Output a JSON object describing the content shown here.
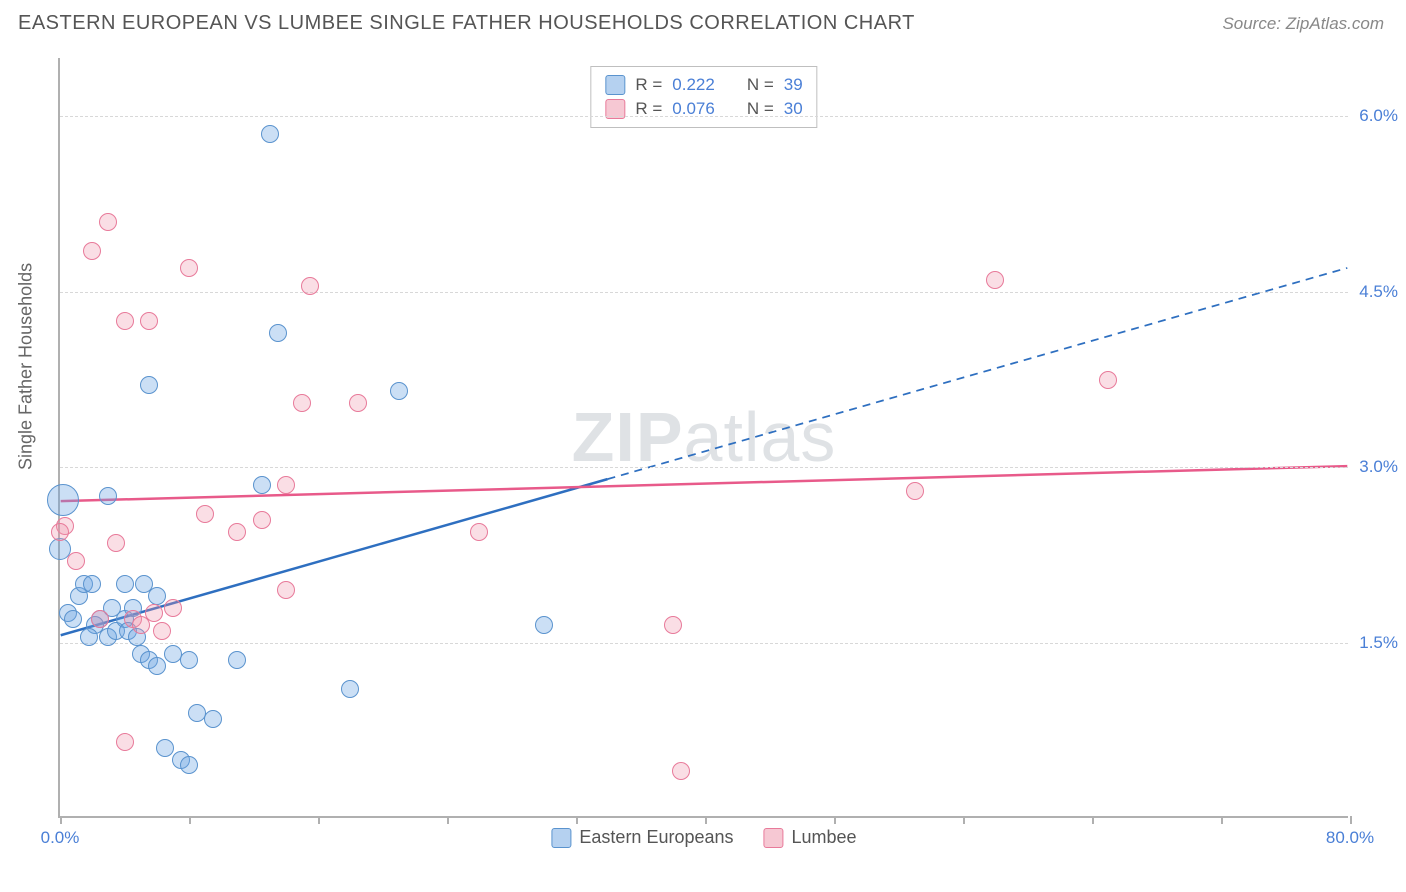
{
  "title": "EASTERN EUROPEAN VS LUMBEE SINGLE FATHER HOUSEHOLDS CORRELATION CHART",
  "source": "Source: ZipAtlas.com",
  "ylabel": "Single Father Households",
  "watermark_a": "ZIP",
  "watermark_b": "atlas",
  "chart": {
    "type": "scatter",
    "x_min": 0.0,
    "x_max": 80.0,
    "y_min": 0.0,
    "y_max": 6.5,
    "x_tick_label_min": "0.0%",
    "x_tick_label_max": "80.0%",
    "x_ticks": [
      0,
      8,
      16,
      24,
      32,
      40,
      48,
      56,
      64,
      72,
      80
    ],
    "y_gridlines": [
      {
        "v": 1.5,
        "label": "1.5%"
      },
      {
        "v": 3.0,
        "label": "3.0%"
      },
      {
        "v": 4.5,
        "label": "4.5%"
      },
      {
        "v": 6.0,
        "label": "6.0%"
      }
    ],
    "background_color": "#ffffff",
    "grid_color": "#d8d8d8",
    "axis_color": "#b0b0b0",
    "tick_label_color": "#4a7fd6",
    "series": [
      {
        "name": "Eastern Europeans",
        "color_fill": "rgba(107,163,226,0.35)",
        "color_stroke": "#5a93ce",
        "r_stat": "0.222",
        "n_stat": "39",
        "trend": {
          "x1": 0,
          "y1": 1.55,
          "x2": 80,
          "y2": 4.7,
          "solid_until_x": 34,
          "color": "#2e6fc0",
          "width": 2.5
        },
        "points": [
          {
            "x": 0.2,
            "y": 2.72,
            "r": 16
          },
          {
            "x": 0.0,
            "y": 2.3,
            "r": 11
          },
          {
            "x": 0.5,
            "y": 1.75,
            "r": 9
          },
          {
            "x": 0.8,
            "y": 1.7,
            "r": 9
          },
          {
            "x": 1.2,
            "y": 1.9,
            "r": 9
          },
          {
            "x": 1.5,
            "y": 2.0,
            "r": 9
          },
          {
            "x": 2.0,
            "y": 2.0,
            "r": 9
          },
          {
            "x": 2.5,
            "y": 1.7,
            "r": 9
          },
          {
            "x": 3.0,
            "y": 1.55,
            "r": 9
          },
          {
            "x": 3.5,
            "y": 1.6,
            "r": 9
          },
          {
            "x": 4.0,
            "y": 1.7,
            "r": 9
          },
          {
            "x": 4.5,
            "y": 1.8,
            "r": 9
          },
          {
            "x": 5.0,
            "y": 1.4,
            "r": 9
          },
          {
            "x": 5.5,
            "y": 1.35,
            "r": 9
          },
          {
            "x": 6.0,
            "y": 1.3,
            "r": 9
          },
          {
            "x": 7.0,
            "y": 1.4,
            "r": 9
          },
          {
            "x": 8.0,
            "y": 1.35,
            "r": 9
          },
          {
            "x": 8.5,
            "y": 0.9,
            "r": 9
          },
          {
            "x": 9.5,
            "y": 0.85,
            "r": 9
          },
          {
            "x": 6.5,
            "y": 0.6,
            "r": 9
          },
          {
            "x": 7.5,
            "y": 0.5,
            "r": 9
          },
          {
            "x": 8.0,
            "y": 0.45,
            "r": 9
          },
          {
            "x": 11.0,
            "y": 1.35,
            "r": 9
          },
          {
            "x": 12.5,
            "y": 2.85,
            "r": 9
          },
          {
            "x": 3.0,
            "y": 2.75,
            "r": 9
          },
          {
            "x": 4.0,
            "y": 2.0,
            "r": 9
          },
          {
            "x": 13.5,
            "y": 4.15,
            "r": 9
          },
          {
            "x": 5.5,
            "y": 3.7,
            "r": 9
          },
          {
            "x": 13.0,
            "y": 5.85,
            "r": 9
          },
          {
            "x": 21.0,
            "y": 3.65,
            "r": 9
          },
          {
            "x": 18.0,
            "y": 1.1,
            "r": 9
          },
          {
            "x": 30.0,
            "y": 1.65,
            "r": 9
          },
          {
            "x": 2.2,
            "y": 1.65,
            "r": 9
          },
          {
            "x": 1.8,
            "y": 1.55,
            "r": 9
          },
          {
            "x": 3.2,
            "y": 1.8,
            "r": 9
          },
          {
            "x": 4.2,
            "y": 1.6,
            "r": 9
          },
          {
            "x": 4.8,
            "y": 1.55,
            "r": 9
          },
          {
            "x": 5.2,
            "y": 2.0,
            "r": 9
          },
          {
            "x": 6.0,
            "y": 1.9,
            "r": 9
          }
        ]
      },
      {
        "name": "Lumbee",
        "color_fill": "rgba(238,145,168,0.30)",
        "color_stroke": "#e87a9a",
        "r_stat": "0.076",
        "n_stat": "30",
        "trend": {
          "x1": 0,
          "y1": 2.7,
          "x2": 80,
          "y2": 3.0,
          "solid_until_x": 80,
          "color": "#e85a8a",
          "width": 2.5
        },
        "points": [
          {
            "x": 0.3,
            "y": 2.5,
            "r": 9
          },
          {
            "x": 0.0,
            "y": 2.45,
            "r": 9
          },
          {
            "x": 1.0,
            "y": 2.2,
            "r": 9
          },
          {
            "x": 2.0,
            "y": 4.85,
            "r": 9
          },
          {
            "x": 3.0,
            "y": 5.1,
            "r": 9
          },
          {
            "x": 4.0,
            "y": 4.25,
            "r": 9
          },
          {
            "x": 5.5,
            "y": 4.25,
            "r": 9
          },
          {
            "x": 8.0,
            "y": 4.7,
            "r": 9
          },
          {
            "x": 9.0,
            "y": 2.6,
            "r": 9
          },
          {
            "x": 11.0,
            "y": 2.45,
            "r": 9
          },
          {
            "x": 12.5,
            "y": 2.55,
            "r": 9
          },
          {
            "x": 14.0,
            "y": 1.95,
            "r": 9
          },
          {
            "x": 15.5,
            "y": 4.55,
            "r": 9
          },
          {
            "x": 15.0,
            "y": 3.55,
            "r": 9
          },
          {
            "x": 18.5,
            "y": 3.55,
            "r": 9
          },
          {
            "x": 14.0,
            "y": 2.85,
            "r": 9
          },
          {
            "x": 7.0,
            "y": 1.8,
            "r": 9
          },
          {
            "x": 4.5,
            "y": 1.7,
            "r": 9
          },
          {
            "x": 4.0,
            "y": 0.65,
            "r": 9
          },
          {
            "x": 2.5,
            "y": 1.7,
            "r": 9
          },
          {
            "x": 26.0,
            "y": 2.45,
            "r": 9
          },
          {
            "x": 38.0,
            "y": 1.65,
            "r": 9
          },
          {
            "x": 38.5,
            "y": 0.4,
            "r": 9
          },
          {
            "x": 53.0,
            "y": 2.8,
            "r": 9
          },
          {
            "x": 58.0,
            "y": 4.6,
            "r": 9
          },
          {
            "x": 65.0,
            "y": 3.75,
            "r": 9
          },
          {
            "x": 5.0,
            "y": 1.65,
            "r": 9
          },
          {
            "x": 5.8,
            "y": 1.75,
            "r": 9
          },
          {
            "x": 6.3,
            "y": 1.6,
            "r": 9
          },
          {
            "x": 3.5,
            "y": 2.35,
            "r": 9
          }
        ]
      }
    ]
  },
  "stat_legend": {
    "r_label": "R =",
    "n_label": "N ="
  },
  "bottom_legend": [
    "Eastern Europeans",
    "Lumbee"
  ]
}
